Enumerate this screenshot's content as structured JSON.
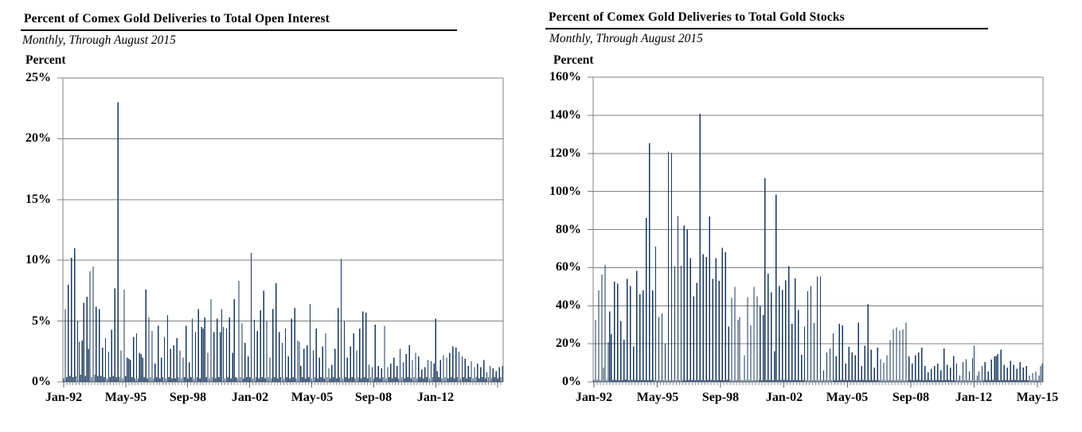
{
  "page": {
    "background": "#ffffff",
    "text_color": "#000000"
  },
  "chart_data": [
    {
      "type": "bar",
      "title": "Percent of Comex Gold Deliveries to Total Open Interest",
      "subtitle": "Monthly, Through August 2015",
      "ylabel": "Percent",
      "x_start": "Jan-1992",
      "x_end": "Aug-2015",
      "frequency": "monthly",
      "ylim": [
        0,
        25
      ],
      "grid": true,
      "legend": "none",
      "bar_color": "#17375D",
      "gridline_color": "#808080",
      "axis_color": "#595959",
      "yticks": [
        "25%",
        "20%",
        "15%",
        "10%",
        "5%",
        "0%"
      ],
      "xticks": [
        {
          "month_index": 0,
          "label": "Jan-92"
        },
        {
          "month_index": 40,
          "label": "May-95"
        },
        {
          "month_index": 80,
          "label": "Sep-98"
        },
        {
          "month_index": 120,
          "label": "Jan-02"
        },
        {
          "month_index": 160,
          "label": "May-05"
        },
        {
          "month_index": 200,
          "label": "Sep-08"
        },
        {
          "month_index": 240,
          "label": "Jan-12"
        },
        {
          "month_index": 280,
          "label": ""
        }
      ],
      "values": [
        0.3,
        6,
        0.4,
        8,
        0.5,
        10.2,
        0.4,
        11,
        0.5,
        5,
        3.3,
        0.6,
        3.4,
        6.5,
        0.5,
        7,
        2.7,
        9.1,
        0.4,
        9.5,
        0.6,
        6.2,
        0.5,
        6,
        0.5,
        2.8,
        0.4,
        3.6,
        0.3,
        2.5,
        0.4,
        4.3,
        0.5,
        7.7,
        0.4,
        23,
        0.4,
        2.6,
        0.3,
        7.6,
        0.5,
        2,
        1.9,
        1.8,
        0.4,
        3.7,
        0.3,
        4,
        0.3,
        2.4,
        2.3,
        2,
        0.4,
        7.6,
        0.3,
        5.3,
        0.4,
        4.2,
        0.3,
        1.5,
        0.4,
        4.6,
        0.3,
        2,
        0.4,
        3.7,
        0.3,
        5.5,
        0.4,
        2.7,
        0.3,
        3,
        0.3,
        3.6,
        0.4,
        2.6,
        0.3,
        2,
        0.4,
        4.6,
        0.3,
        1.6,
        0.4,
        5.2,
        0.3,
        4.1,
        0.4,
        6,
        0.3,
        4.5,
        4.4,
        5.3,
        0.4,
        2.4,
        0.3,
        6.8,
        0.4,
        4.1,
        0.3,
        5.2,
        0.4,
        4.1,
        6,
        4.5,
        0.3,
        4.4,
        0.4,
        5.3,
        0.3,
        2.4,
        6.8,
        0.4,
        0.3,
        8.3,
        0.4,
        4.8,
        0.3,
        3.2,
        0.4,
        2.1,
        0.4,
        10.6,
        0.3,
        5.1,
        0.4,
        4.2,
        0.3,
        5.9,
        0.4,
        7.5,
        0.3,
        5,
        0.4,
        2,
        0.3,
        6,
        0.4,
        8.1,
        0.3,
        4.1,
        0.4,
        3.2,
        0.3,
        4.4,
        0.4,
        2.1,
        0.3,
        5.2,
        0.4,
        6.1,
        0.3,
        3.4,
        3.3,
        1.3,
        0.4,
        2.7,
        0.3,
        3,
        0.4,
        6.4,
        0.3,
        2.6,
        0.4,
        4.4,
        0.3,
        2,
        0.4,
        2.9,
        0.3,
        4,
        0.4,
        1.1,
        0.3,
        1.4,
        0.4,
        2.7,
        0.3,
        6.1,
        0.4,
        10.1,
        0.3,
        5,
        0.4,
        2,
        0.3,
        2.9,
        0.4,
        4,
        0.3,
        2.6,
        0.4,
        4.4,
        0.3,
        5.8,
        0.4,
        5.7,
        0.3,
        1.4,
        0.4,
        1.2,
        0.3,
        4.7,
        0.4,
        1.3,
        0.3,
        1.1,
        0.4,
        4.6,
        0.3,
        1.2,
        0.4,
        1.5,
        0.3,
        2,
        0.4,
        1.3,
        0.3,
        2.7,
        0.4,
        1.6,
        0.3,
        2.3,
        0.4,
        3,
        0.3,
        1.8,
        0.4,
        2.4,
        0.3,
        2.1,
        0.4,
        1,
        0.3,
        1.2,
        0.4,
        1.8,
        0.3,
        1.7,
        0.4,
        1.5,
        5.2,
        0.9,
        0.4,
        1.8,
        0.3,
        2.2,
        0.4,
        2,
        0.3,
        2.4,
        0.4,
        2.9,
        0.3,
        2.8,
        0.4,
        2.5,
        0.3,
        2.1,
        0.4,
        1.9,
        0.3,
        1.3,
        0.4,
        1.7,
        0.3,
        1.2,
        0.4,
        1.5,
        0.3,
        1.2,
        0.4,
        1.8,
        0.3,
        0.8,
        0.4,
        1.3,
        0.3,
        1.1,
        0.4,
        0.9,
        0.3,
        1.2,
        0.4,
        1.3
      ]
    },
    {
      "type": "bar",
      "title": "Percent of Comex Gold Deliveries to Total Gold Stocks",
      "subtitle": "Monthly, Through August 2015",
      "ylabel": "Percent",
      "x_start": "Jan-1992",
      "x_end": "Aug-2015",
      "frequency": "monthly",
      "ylim": [
        0,
        160
      ],
      "grid": true,
      "legend": "none",
      "bar_color": "#17375D",
      "gridline_color": "#808080",
      "axis_color": "#595959",
      "yticks": [
        "160%",
        "140%",
        "120%",
        "100%",
        "80%",
        "60%",
        "40%",
        "20%",
        "0%"
      ],
      "xticks": [
        {
          "month_index": 0,
          "label": "Jan-92"
        },
        {
          "month_index": 40,
          "label": "May-95"
        },
        {
          "month_index": 80,
          "label": "Sep-98"
        },
        {
          "month_index": 120,
          "label": "Jan-02"
        },
        {
          "month_index": 160,
          "label": "May-05"
        },
        {
          "month_index": 200,
          "label": "Sep-08"
        },
        {
          "month_index": 240,
          "label": "Jan-12"
        },
        {
          "month_index": 280,
          "label": "May-15"
        }
      ],
      "values": [
        1,
        32.6,
        1.2,
        48,
        0.9,
        56.4,
        7.6,
        61.4,
        1,
        20.9,
        36.9,
        25.1,
        1,
        52.6,
        1.1,
        51.6,
        0.9,
        31.9,
        1,
        22.1,
        1.2,
        54,
        0.9,
        50.4,
        1,
        18.6,
        1.1,
        58.3,
        0.9,
        46,
        1,
        48,
        1.1,
        86,
        0.9,
        125.4,
        1,
        48,
        1.1,
        71,
        0.9,
        34,
        1,
        36,
        1.1,
        20,
        0.9,
        121,
        1,
        120.4,
        1.1,
        60.7,
        0.9,
        87,
        1,
        61,
        1.1,
        82,
        0.9,
        80,
        1,
        65,
        1.1,
        45,
        0.9,
        52,
        1,
        140.7,
        1.1,
        67,
        0.9,
        65.5,
        1,
        86.9,
        1.1,
        54,
        0.9,
        65,
        1,
        53,
        1.1,
        70.4,
        0.9,
        68,
        1,
        29,
        1.1,
        44,
        0.9,
        50,
        1,
        32.6,
        34,
        1.1,
        0.9,
        14,
        1,
        44.4,
        1.1,
        29.7,
        0.9,
        50,
        1,
        45,
        1.1,
        40,
        0.9,
        35,
        106.9,
        1,
        56.9,
        1.1,
        46.9,
        0.9,
        16,
        98.3,
        1,
        50.4,
        1.1,
        48.3,
        1,
        53.3,
        1.1,
        60.7,
        0.9,
        30.4,
        1,
        54.3,
        1.1,
        37.9,
        0.9,
        14.3,
        1,
        29,
        1.1,
        47.6,
        0.9,
        50.4,
        1,
        31,
        1.1,
        55.4,
        0.9,
        55.4,
        1,
        6,
        1.1,
        15.4,
        0.9,
        17.6,
        1,
        25.4,
        1.1,
        13.3,
        0.9,
        30.4,
        1,
        29.7,
        1.1,
        9.7,
        0.9,
        18.3,
        1,
        15.4,
        1.1,
        14,
        0.9,
        31.1,
        1,
        8.3,
        1.1,
        19,
        0.9,
        40.7,
        1,
        16.9,
        1.1,
        7.6,
        0.9,
        17.9,
        1,
        11.9,
        1.1,
        10,
        0.9,
        14,
        1,
        21.9,
        1.1,
        27.6,
        0.9,
        28.7,
        1,
        26.9,
        1.1,
        27.6,
        0.9,
        31.1,
        1,
        13.3,
        1.1,
        9.7,
        0.9,
        14,
        1,
        15.4,
        1.1,
        17.9,
        0.9,
        8.3,
        1,
        5,
        1.1,
        6.9,
        0.9,
        8.3,
        1,
        9.7,
        1.1,
        6.1,
        0.9,
        17.6,
        1,
        9,
        1.1,
        7.6,
        0.9,
        13.6,
        1,
        9.7,
        1.1,
        3.3,
        0.9,
        10.4,
        1,
        11.9,
        1.1,
        5.4,
        0.9,
        12.6,
        19,
        1,
        3.3,
        5.4,
        0.9,
        8.3,
        1,
        10.4,
        1.1,
        5.4,
        0.9,
        11.6,
        1,
        13.3,
        13.6,
        14.7,
        0.9,
        16.9,
        1,
        9,
        1.1,
        7.6,
        0.9,
        11.1,
        1,
        9,
        1.1,
        6.9,
        0.9,
        10.4,
        1,
        7.6,
        1.1,
        8.3,
        0.9,
        3.3,
        1,
        4.7,
        1.1,
        5.4,
        0.9,
        3.3,
        8.3,
        9.7
      ]
    }
  ]
}
